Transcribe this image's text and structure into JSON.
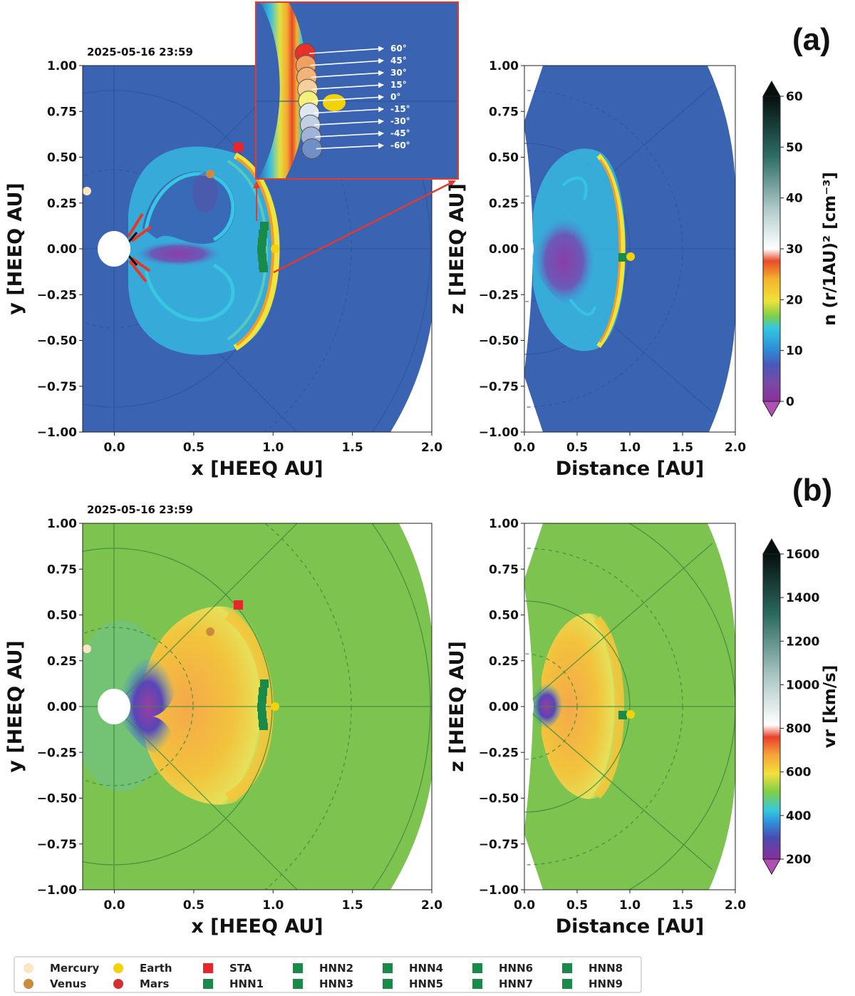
{
  "timestamp": "2025-05-16 23:59",
  "panel_labels": [
    "(a)",
    "(b)"
  ],
  "axes_labels": {
    "x_eq": "x [HEEQ AU]",
    "y_eq": "y [HEEQ AU]",
    "dist": "Distance [AU]",
    "z_mer": "z [HEEQ AU]"
  },
  "chart_data": [
    {
      "type": "heatmap",
      "panel": "(a)",
      "view": "equatorial",
      "title": "2025-05-16 23:59",
      "xlabel": "x [HEEQ AU]",
      "ylabel": "y [HEEQ AU]",
      "xlim": [
        -0.2,
        2.0
      ],
      "ylim": [
        -1.0,
        1.0
      ],
      "xticks": [
        "0.0",
        "0.5",
        "1.0",
        "1.5",
        "2.0"
      ],
      "yticks": [
        "1.00",
        "0.75",
        "0.50",
        "0.25",
        "0.00",
        "−0.25",
        "−0.50",
        "−0.75",
        "−1.00"
      ],
      "quantity": "n (r/1AU)^2 [cm^-3]",
      "bodies": [
        {
          "name": "Mercury",
          "x": -0.17,
          "y": 0.31
        },
        {
          "name": "Venus",
          "x": 0.6,
          "y": 0.41
        },
        {
          "name": "Earth",
          "x": 1.01,
          "y": 0.0
        },
        {
          "name": "STA",
          "x": 0.78,
          "y": 0.55
        }
      ]
    },
    {
      "type": "heatmap",
      "panel": "(a)",
      "view": "meridional",
      "xlabel": "Distance [AU]",
      "ylabel": "z [HEEQ AU]",
      "xlim": [
        0.0,
        2.0
      ],
      "ylim": [
        -1.0,
        1.0
      ],
      "xticks": [
        "0.0",
        "0.5",
        "1.0",
        "1.5",
        "2.0"
      ],
      "yticks": [
        "1.00",
        "0.75",
        "0.50",
        "0.25",
        "0.00",
        "−0.25",
        "−0.50",
        "−0.75",
        "−1.00"
      ],
      "quantity": "n (r/1AU)^2 [cm^-3]"
    },
    {
      "type": "heatmap",
      "panel": "(b)",
      "view": "equatorial",
      "title": "2025-05-16 23:59",
      "xlabel": "x [HEEQ AU]",
      "ylabel": "y [HEEQ AU]",
      "xlim": [
        -0.2,
        2.0
      ],
      "ylim": [
        -1.0,
        1.0
      ],
      "xticks": [
        "0.0",
        "0.5",
        "1.0",
        "1.5",
        "2.0"
      ],
      "yticks": [
        "1.00",
        "0.75",
        "0.50",
        "0.25",
        "0.00",
        "−0.25",
        "−0.50",
        "−0.75",
        "−1.00"
      ],
      "quantity": "vr [km/s]"
    },
    {
      "type": "heatmap",
      "panel": "(b)",
      "view": "meridional",
      "xlabel": "Distance [AU]",
      "ylabel": "z [HEEQ AU]",
      "xlim": [
        0.0,
        2.0
      ],
      "ylim": [
        -1.0,
        1.0
      ],
      "xticks": [
        "0.0",
        "0.5",
        "1.0",
        "1.5",
        "2.0"
      ],
      "yticks": [
        "1.00",
        "0.75",
        "0.50",
        "0.25",
        "0.00",
        "−0.25",
        "−0.50",
        "−0.75",
        "−1.00"
      ],
      "quantity": "vr [km/s]"
    }
  ],
  "colorbars": [
    {
      "label": "n (r/1AU)² [cm⁻³]",
      "ticks": [
        "60",
        "50",
        "40",
        "30",
        "20",
        "10",
        "0"
      ],
      "min": 0,
      "max": 60
    },
    {
      "label": "vr [km/s]",
      "ticks": [
        "1600",
        "1400",
        "1200",
        "1000",
        "800",
        "600",
        "400",
        "200"
      ],
      "min": 200,
      "max": 1600
    }
  ],
  "inset": {
    "latitudes": [
      "60°",
      "45°",
      "30°",
      "15°",
      "0°",
      "-15°",
      "-30°",
      "-45°",
      "-60°"
    ],
    "circle_colors": [
      "#e8302a",
      "#f0a060",
      "#f2b47a",
      "#f6d09a",
      "#f7f07a",
      "#dfe8f0",
      "#c3d0e4",
      "#9fb3d8",
      "#6f8fc6"
    ]
  },
  "legend": [
    {
      "label": "Mercury",
      "color": "#fbe6c4",
      "shape": "circle"
    },
    {
      "label": "Venus",
      "color": "#cc8a3c",
      "shape": "circle"
    },
    {
      "label": "Earth",
      "color": "#f4d20a",
      "shape": "circle"
    },
    {
      "label": "Mars",
      "color": "#d43030",
      "shape": "circle"
    },
    {
      "label": "STA",
      "color": "#e8252a",
      "shape": "square"
    },
    {
      "label": "HNN1",
      "color": "#1a8a4a",
      "shape": "square"
    },
    {
      "label": "HNN2",
      "color": "#1a8a4a",
      "shape": "square"
    },
    {
      "label": "HNN3",
      "color": "#1a8a4a",
      "shape": "square"
    },
    {
      "label": "HNN4",
      "color": "#1a8a4a",
      "shape": "square"
    },
    {
      "label": "HNN5",
      "color": "#1a8a4a",
      "shape": "square"
    },
    {
      "label": "HNN6",
      "color": "#1a8a4a",
      "shape": "square"
    },
    {
      "label": "HNN7",
      "color": "#1a8a4a",
      "shape": "square"
    },
    {
      "label": "HNN8",
      "color": "#1a8a4a",
      "shape": "square"
    },
    {
      "label": "HNN9",
      "color": "#1a8a4a",
      "shape": "square"
    }
  ]
}
